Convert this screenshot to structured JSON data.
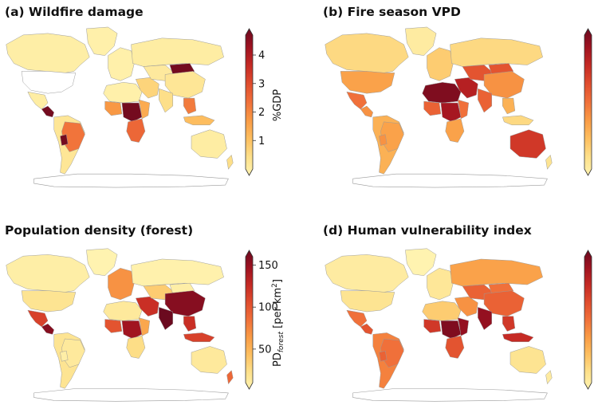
{
  "colors": {
    "cmap": [
      "#fff3b0",
      "#fde08a",
      "#fdbf60",
      "#f99b45",
      "#f0703a",
      "#e04d2e",
      "#c52a24",
      "#9e1220",
      "#6b0a1f"
    ],
    "land_empty": "#ffffff",
    "border": "#9a9a9a"
  },
  "panels": [
    {
      "id": "a",
      "title": "(a) Wildfire damage",
      "colorbar": {
        "label": "%GDP",
        "ticks": [
          "1",
          "2",
          "3",
          "4"
        ],
        "tick_values": [
          1,
          2,
          3,
          4
        ],
        "min": 0,
        "max": 4.7
      },
      "regions": [
        {
          "name": "north-america",
          "v": 0.15
        },
        {
          "name": "greenland",
          "v": 0.1
        },
        {
          "name": "mexico",
          "v": 0.2
        },
        {
          "name": "central-america",
          "v": 4.6
        },
        {
          "name": "south-america",
          "v": 0.4
        },
        {
          "name": "brazil",
          "v": 2.3
        },
        {
          "name": "bolivia",
          "v": 4.6
        },
        {
          "name": "europe",
          "v": 0.1
        },
        {
          "name": "russia",
          "v": 0.2
        },
        {
          "name": "north-africa",
          "v": 0.1
        },
        {
          "name": "west-africa",
          "v": 1.8
        },
        {
          "name": "central-africa",
          "v": 4.6
        },
        {
          "name": "east-africa",
          "v": 1.5
        },
        {
          "name": "southern-africa",
          "v": 2.5
        },
        {
          "name": "middle-east",
          "v": 0.8
        },
        {
          "name": "central-asia",
          "v": 0.3
        },
        {
          "name": "mongolia",
          "v": 4.6
        },
        {
          "name": "china",
          "v": 0.4
        },
        {
          "name": "south-asia",
          "v": 0.6
        },
        {
          "name": "southeast-asia",
          "v": 2.2
        },
        {
          "name": "indonesia",
          "v": 1.2
        },
        {
          "name": "australia",
          "v": 0.2
        },
        {
          "name": "new-zealand",
          "v": 0.6
        }
      ]
    },
    {
      "id": "b",
      "title": "(b) Fire season VPD",
      "colorbar": {
        "label": "",
        "ticks": [],
        "tick_values": [],
        "min": 0,
        "max": 1
      },
      "regions": [
        {
          "name": "north-america",
          "v": 0.15
        },
        {
          "name": "usa",
          "v": 0.35
        },
        {
          "name": "greenland",
          "v": 0.05
        },
        {
          "name": "mexico",
          "v": 0.5
        },
        {
          "name": "central-america",
          "v": 0.4
        },
        {
          "name": "south-america",
          "v": 0.3
        },
        {
          "name": "brazil",
          "v": 0.35
        },
        {
          "name": "bolivia",
          "v": 0.4
        },
        {
          "name": "europe",
          "v": 0.2
        },
        {
          "name": "russia",
          "v": 0.15
        },
        {
          "name": "north-africa",
          "v": 0.95
        },
        {
          "name": "west-africa",
          "v": 0.55
        },
        {
          "name": "central-africa",
          "v": 0.85
        },
        {
          "name": "east-africa",
          "v": 0.5
        },
        {
          "name": "southern-africa",
          "v": 0.35
        },
        {
          "name": "middle-east",
          "v": 0.8
        },
        {
          "name": "central-asia",
          "v": 0.6
        },
        {
          "name": "mongolia",
          "v": 0.6
        },
        {
          "name": "china",
          "v": 0.4
        },
        {
          "name": "south-asia",
          "v": 0.55
        },
        {
          "name": "southeast-asia",
          "v": 0.3
        },
        {
          "name": "indonesia",
          "v": 0.15
        },
        {
          "name": "australia",
          "v": 0.7
        },
        {
          "name": "new-zealand",
          "v": 0.1
        }
      ]
    },
    {
      "id": "c",
      "title": "Population density (forest)",
      "colorbar": {
        "label": "PD",
        "label_sub": "forest",
        "label_rest": " [per km",
        "label_sup": "2",
        "label_end": "]",
        "ticks": [
          "50",
          "100",
          "150"
        ],
        "tick_values": [
          50,
          100,
          150
        ],
        "min": 10,
        "max": 160
      },
      "regions": [
        {
          "name": "north-america",
          "v": 15
        },
        {
          "name": "usa",
          "v": 25
        },
        {
          "name": "greenland",
          "v": 10
        },
        {
          "name": "mexico",
          "v": 110
        },
        {
          "name": "central-america",
          "v": 150
        },
        {
          "name": "south-america",
          "v": 25
        },
        {
          "name": "brazil",
          "v": 20
        },
        {
          "name": "bolivia",
          "v": 15
        },
        {
          "name": "europe",
          "v": 70
        },
        {
          "name": "russia",
          "v": 12
        },
        {
          "name": "north-africa",
          "v": 20
        },
        {
          "name": "west-africa",
          "v": 100
        },
        {
          "name": "central-africa",
          "v": 140
        },
        {
          "name": "east-africa",
          "v": 60
        },
        {
          "name": "southern-africa",
          "v": 30
        },
        {
          "name": "middle-east",
          "v": 120
        },
        {
          "name": "central-asia",
          "v": 40
        },
        {
          "name": "mongolia",
          "v": 15
        },
        {
          "name": "china",
          "v": 150
        },
        {
          "name": "south-asia",
          "v": 160
        },
        {
          "name": "southeast-asia",
          "v": 120
        },
        {
          "name": "indonesia",
          "v": 110
        },
        {
          "name": "australia",
          "v": 20
        },
        {
          "name": "new-zealand",
          "v": 90
        }
      ]
    },
    {
      "id": "d",
      "title": "(d) Human vulnerability index",
      "colorbar": {
        "label": "",
        "ticks": [],
        "tick_values": [],
        "min": 0,
        "max": 1
      },
      "regions": [
        {
          "name": "north-america",
          "v": 0.05
        },
        {
          "name": "usa",
          "v": 0.1
        },
        {
          "name": "greenland",
          "v": 0.0
        },
        {
          "name": "mexico",
          "v": 0.5
        },
        {
          "name": "central-america",
          "v": 0.6
        },
        {
          "name": "south-america",
          "v": 0.45
        },
        {
          "name": "brazil",
          "v": 0.5
        },
        {
          "name": "bolivia",
          "v": 0.55
        },
        {
          "name": "europe",
          "v": 0.08
        },
        {
          "name": "russia",
          "v": 0.35
        },
        {
          "name": "north-africa",
          "v": 0.2
        },
        {
          "name": "west-africa",
          "v": 0.7
        },
        {
          "name": "central-africa",
          "v": 0.95
        },
        {
          "name": "east-africa",
          "v": 0.9
        },
        {
          "name": "southern-africa",
          "v": 0.6
        },
        {
          "name": "middle-east",
          "v": 0.4
        },
        {
          "name": "central-asia",
          "v": 0.55
        },
        {
          "name": "mongolia",
          "v": 0.5
        },
        {
          "name": "china",
          "v": 0.55
        },
        {
          "name": "south-asia",
          "v": 0.9
        },
        {
          "name": "southeast-asia",
          "v": 0.7
        },
        {
          "name": "indonesia",
          "v": 0.75
        },
        {
          "name": "australia",
          "v": 0.1
        },
        {
          "name": "new-zealand",
          "v": 0.05
        }
      ]
    }
  ]
}
